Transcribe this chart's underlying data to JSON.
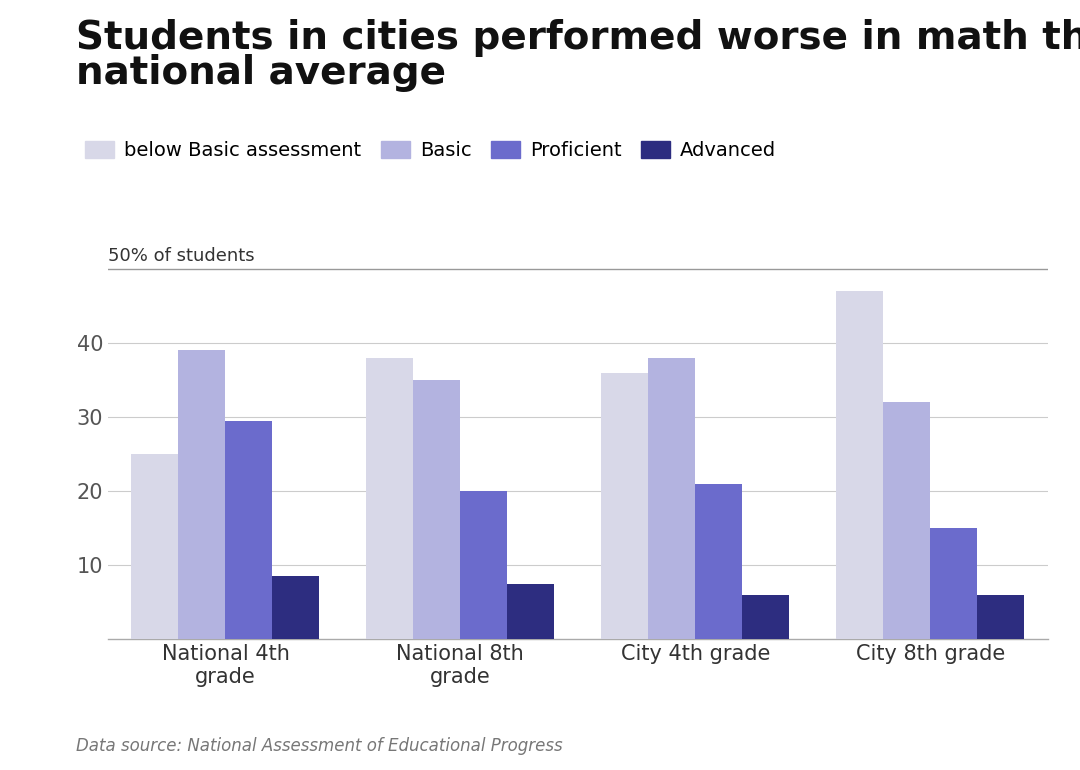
{
  "title_line1": "Students in cities performed worse in math than",
  "title_line2": "national average",
  "categories": [
    "National 4th\ngrade",
    "National 8th\ngrade",
    "City 4th grade",
    "City 8th grade"
  ],
  "series": {
    "below Basic assessment": [
      25,
      38,
      36,
      47
    ],
    "Basic": [
      39,
      35,
      38,
      32
    ],
    "Proficient": [
      29.5,
      20,
      21,
      15
    ],
    "Advanced": [
      8.5,
      7.5,
      6,
      6
    ]
  },
  "colors": {
    "below Basic assessment": "#d8d8e8",
    "Basic": "#b3b3e0",
    "Proficient": "#6b6bcc",
    "Advanced": "#2d2d80"
  },
  "legend_labels": [
    "below Basic assessment",
    "Basic",
    "Proficient",
    "Advanced"
  ],
  "ylabel_text": "50% of students",
  "yticks": [
    10,
    20,
    30,
    40
  ],
  "ylim": [
    0,
    52
  ],
  "source_text": "Data source: National Assessment of Educational Progress",
  "background_color": "#ffffff",
  "bar_width": 0.2,
  "title_fontsize": 28,
  "legend_fontsize": 14,
  "tick_fontsize": 15,
  "source_fontsize": 12
}
